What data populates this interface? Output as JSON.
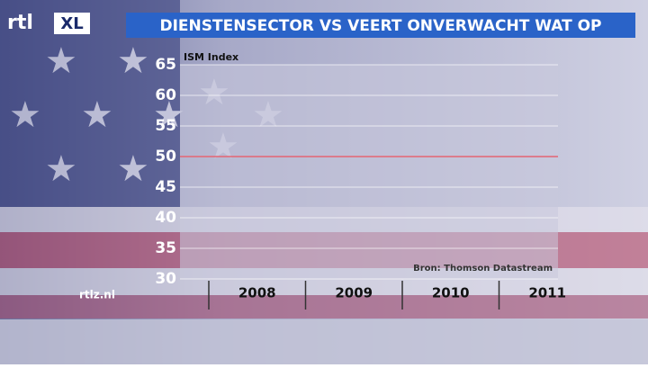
{
  "logo": {
    "left": "rtl",
    "right": "XL"
  },
  "footer": "rtlz.nl",
  "chart_data": {
    "type": "line",
    "title": "DIENSTENSECTOR VS VEERT ONVERWACHT WAT OP",
    "y_label": "ISM Index",
    "source": "Bron: Thomson Datastream",
    "categories": [
      "2008",
      "2009",
      "2010",
      "2011"
    ],
    "ylim": [
      30,
      65
    ],
    "yticks": [
      30,
      35,
      40,
      45,
      50,
      55,
      60,
      65
    ],
    "grid": true,
    "reference_line": {
      "value": 50,
      "color": "#e06070"
    }
  }
}
